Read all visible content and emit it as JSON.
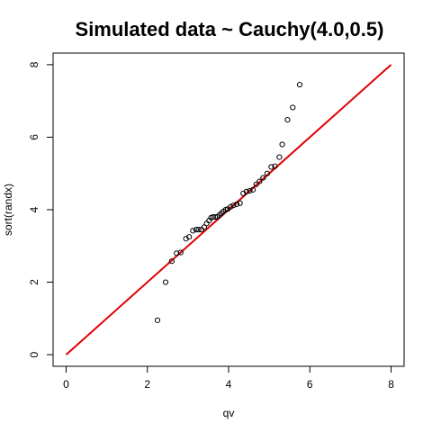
{
  "chart_data": {
    "type": "scatter",
    "title": "Simulated data ~ Cauchy(4.0,0.5)",
    "xlabel": "qv",
    "ylabel": "sort(randx)",
    "xlim": [
      -0.32,
      8.32
    ],
    "ylim": [
      -0.32,
      8.32
    ],
    "x_ticks": [
      0,
      2,
      4,
      6,
      8
    ],
    "y_ticks": [
      0,
      2,
      4,
      6,
      8
    ],
    "grid": false,
    "legend": "none",
    "reference_line": {
      "from": [
        0,
        0
      ],
      "to": [
        8,
        8
      ],
      "color": "#e00000"
    },
    "point_color": "#000000",
    "points": [
      {
        "x": 2.25,
        "y": 0.95
      },
      {
        "x": 2.45,
        "y": 2.0
      },
      {
        "x": 2.6,
        "y": 2.58
      },
      {
        "x": 2.72,
        "y": 2.8
      },
      {
        "x": 2.82,
        "y": 2.82
      },
      {
        "x": 2.95,
        "y": 3.2
      },
      {
        "x": 3.03,
        "y": 3.25
      },
      {
        "x": 3.12,
        "y": 3.42
      },
      {
        "x": 3.2,
        "y": 3.45
      },
      {
        "x": 3.26,
        "y": 3.45
      },
      {
        "x": 3.33,
        "y": 3.45
      },
      {
        "x": 3.4,
        "y": 3.52
      },
      {
        "x": 3.46,
        "y": 3.62
      },
      {
        "x": 3.52,
        "y": 3.7
      },
      {
        "x": 3.57,
        "y": 3.78
      },
      {
        "x": 3.62,
        "y": 3.8
      },
      {
        "x": 3.67,
        "y": 3.8
      },
      {
        "x": 3.72,
        "y": 3.8
      },
      {
        "x": 3.77,
        "y": 3.85
      },
      {
        "x": 3.82,
        "y": 3.9
      },
      {
        "x": 3.87,
        "y": 3.95
      },
      {
        "x": 3.93,
        "y": 4.0
      },
      {
        "x": 3.98,
        "y": 4.02
      },
      {
        "x": 4.05,
        "y": 4.08
      },
      {
        "x": 4.12,
        "y": 4.12
      },
      {
        "x": 4.2,
        "y": 4.15
      },
      {
        "x": 4.28,
        "y": 4.18
      },
      {
        "x": 4.36,
        "y": 4.45
      },
      {
        "x": 4.44,
        "y": 4.5
      },
      {
        "x": 4.52,
        "y": 4.52
      },
      {
        "x": 4.6,
        "y": 4.55
      },
      {
        "x": 4.68,
        "y": 4.7
      },
      {
        "x": 4.76,
        "y": 4.78
      },
      {
        "x": 4.85,
        "y": 4.88
      },
      {
        "x": 4.95,
        "y": 5.0
      },
      {
        "x": 5.05,
        "y": 5.18
      },
      {
        "x": 5.14,
        "y": 5.2
      },
      {
        "x": 5.25,
        "y": 5.45
      },
      {
        "x": 5.32,
        "y": 5.8
      },
      {
        "x": 5.45,
        "y": 6.48
      },
      {
        "x": 5.58,
        "y": 6.82
      },
      {
        "x": 5.75,
        "y": 7.45
      }
    ]
  }
}
